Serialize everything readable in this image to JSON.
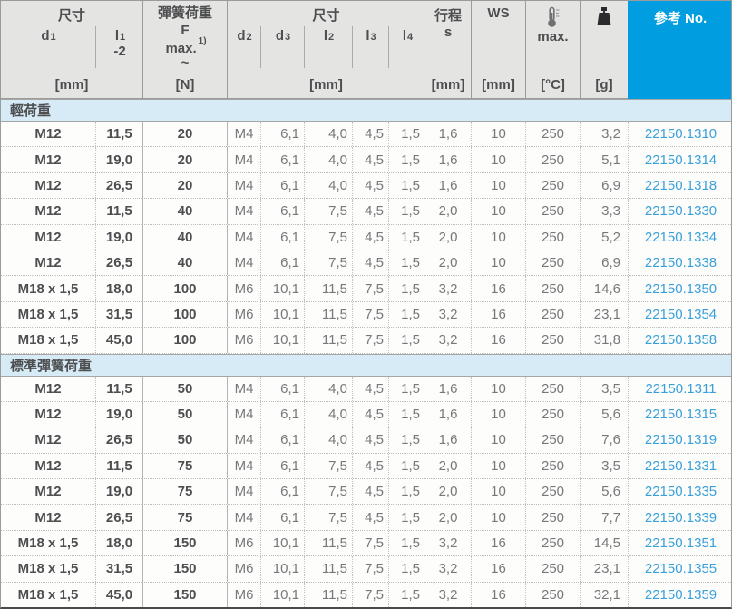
{
  "colors": {
    "accent_blue": "#009ee0",
    "ref_link_blue": "#3aa0da",
    "section_bg": "#d7ebf6",
    "header_bg": "#e4e4e2"
  },
  "header": {
    "dim_group1": {
      "title": "尺寸",
      "d1": {
        "base": "d",
        "sub": "1"
      },
      "l1": {
        "base": "l",
        "sub": "1",
        "tol": "-2"
      },
      "unit": "[mm]"
    },
    "force": {
      "title": "彈簧荷重",
      "symbol": "F",
      "max_label": "max.",
      "footnote": "1)",
      "tilde": "~",
      "unit": "[N]"
    },
    "dim_group2": {
      "title": "尺寸",
      "subcols": [
        {
          "base": "d",
          "sub": "2"
        },
        {
          "base": "d",
          "sub": "3"
        },
        {
          "base": "l",
          "sub": "2"
        },
        {
          "base": "l",
          "sub": "3"
        },
        {
          "base": "l",
          "sub": "4"
        }
      ],
      "unit": "[mm]"
    },
    "stroke": {
      "title": "行程",
      "symbol": "s",
      "unit": "[mm]"
    },
    "ws": {
      "title": "WS",
      "unit": "[mm]"
    },
    "temp": {
      "icon": "thermometer-icon",
      "label": "max.",
      "unit": "[°C]"
    },
    "weight": {
      "icon": "weight-icon",
      "unit": "[g]"
    },
    "ref": {
      "title": "參考 No."
    }
  },
  "column_keys": [
    "d1",
    "l1",
    "spring-load-F",
    "d2",
    "d3",
    "l2",
    "l3",
    "l4",
    "stroke-s",
    "WS",
    "temp-max",
    "weight-g",
    "ref-no"
  ],
  "sections": [
    {
      "title": "輕荷重",
      "rows": [
        [
          "M12",
          "11,5",
          "20",
          "M4",
          "6,1",
          "4,0",
          "4,5",
          "1,5",
          "1,6",
          "10",
          "250",
          "3,2",
          "22150.1310"
        ],
        [
          "M12",
          "19,0",
          "20",
          "M4",
          "6,1",
          "4,0",
          "4,5",
          "1,5",
          "1,6",
          "10",
          "250",
          "5,1",
          "22150.1314"
        ],
        [
          "M12",
          "26,5",
          "20",
          "M4",
          "6,1",
          "4,0",
          "4,5",
          "1,5",
          "1,6",
          "10",
          "250",
          "6,9",
          "22150.1318"
        ],
        [
          "M12",
          "11,5",
          "40",
          "M4",
          "6,1",
          "7,5",
          "4,5",
          "1,5",
          "2,0",
          "10",
          "250",
          "3,3",
          "22150.1330"
        ],
        [
          "M12",
          "19,0",
          "40",
          "M4",
          "6,1",
          "7,5",
          "4,5",
          "1,5",
          "2,0",
          "10",
          "250",
          "5,2",
          "22150.1334"
        ],
        [
          "M12",
          "26,5",
          "40",
          "M4",
          "6,1",
          "7,5",
          "4,5",
          "1,5",
          "2,0",
          "10",
          "250",
          "6,9",
          "22150.1338"
        ],
        [
          "M18 x 1,5",
          "18,0",
          "100",
          "M6",
          "10,1",
          "11,5",
          "7,5",
          "1,5",
          "3,2",
          "16",
          "250",
          "14,6",
          "22150.1350"
        ],
        [
          "M18 x 1,5",
          "31,5",
          "100",
          "M6",
          "10,1",
          "11,5",
          "7,5",
          "1,5",
          "3,2",
          "16",
          "250",
          "23,1",
          "22150.1354"
        ],
        [
          "M18 x 1,5",
          "45,0",
          "100",
          "M6",
          "10,1",
          "11,5",
          "7,5",
          "1,5",
          "3,2",
          "16",
          "250",
          "31,8",
          "22150.1358"
        ]
      ]
    },
    {
      "title": "標準彈簧荷重",
      "rows": [
        [
          "M12",
          "11,5",
          "50",
          "M4",
          "6,1",
          "4,0",
          "4,5",
          "1,5",
          "1,6",
          "10",
          "250",
          "3,5",
          "22150.1311"
        ],
        [
          "M12",
          "19,0",
          "50",
          "M4",
          "6,1",
          "4,0",
          "4,5",
          "1,5",
          "1,6",
          "10",
          "250",
          "5,6",
          "22150.1315"
        ],
        [
          "M12",
          "26,5",
          "50",
          "M4",
          "6,1",
          "4,0",
          "4,5",
          "1,5",
          "1,6",
          "10",
          "250",
          "7,6",
          "22150.1319"
        ],
        [
          "M12",
          "11,5",
          "75",
          "M4",
          "6,1",
          "7,5",
          "4,5",
          "1,5",
          "2,0",
          "10",
          "250",
          "3,5",
          "22150.1331"
        ],
        [
          "M12",
          "19,0",
          "75",
          "M4",
          "6,1",
          "7,5",
          "4,5",
          "1,5",
          "2,0",
          "10",
          "250",
          "5,6",
          "22150.1335"
        ],
        [
          "M12",
          "26,5",
          "75",
          "M4",
          "6,1",
          "7,5",
          "4,5",
          "1,5",
          "2,0",
          "10",
          "250",
          "7,7",
          "22150.1339"
        ],
        [
          "M18 x 1,5",
          "18,0",
          "150",
          "M6",
          "10,1",
          "11,5",
          "7,5",
          "1,5",
          "3,2",
          "16",
          "250",
          "14,5",
          "22150.1351"
        ],
        [
          "M18 x 1,5",
          "31,5",
          "150",
          "M6",
          "10,1",
          "11,5",
          "7,5",
          "1,5",
          "3,2",
          "16",
          "250",
          "23,1",
          "22150.1355"
        ],
        [
          "M18 x 1,5",
          "45,0",
          "150",
          "M6",
          "10,1",
          "11,5",
          "7,5",
          "1,5",
          "3,2",
          "16",
          "250",
          "32,1",
          "22150.1359"
        ]
      ]
    }
  ]
}
